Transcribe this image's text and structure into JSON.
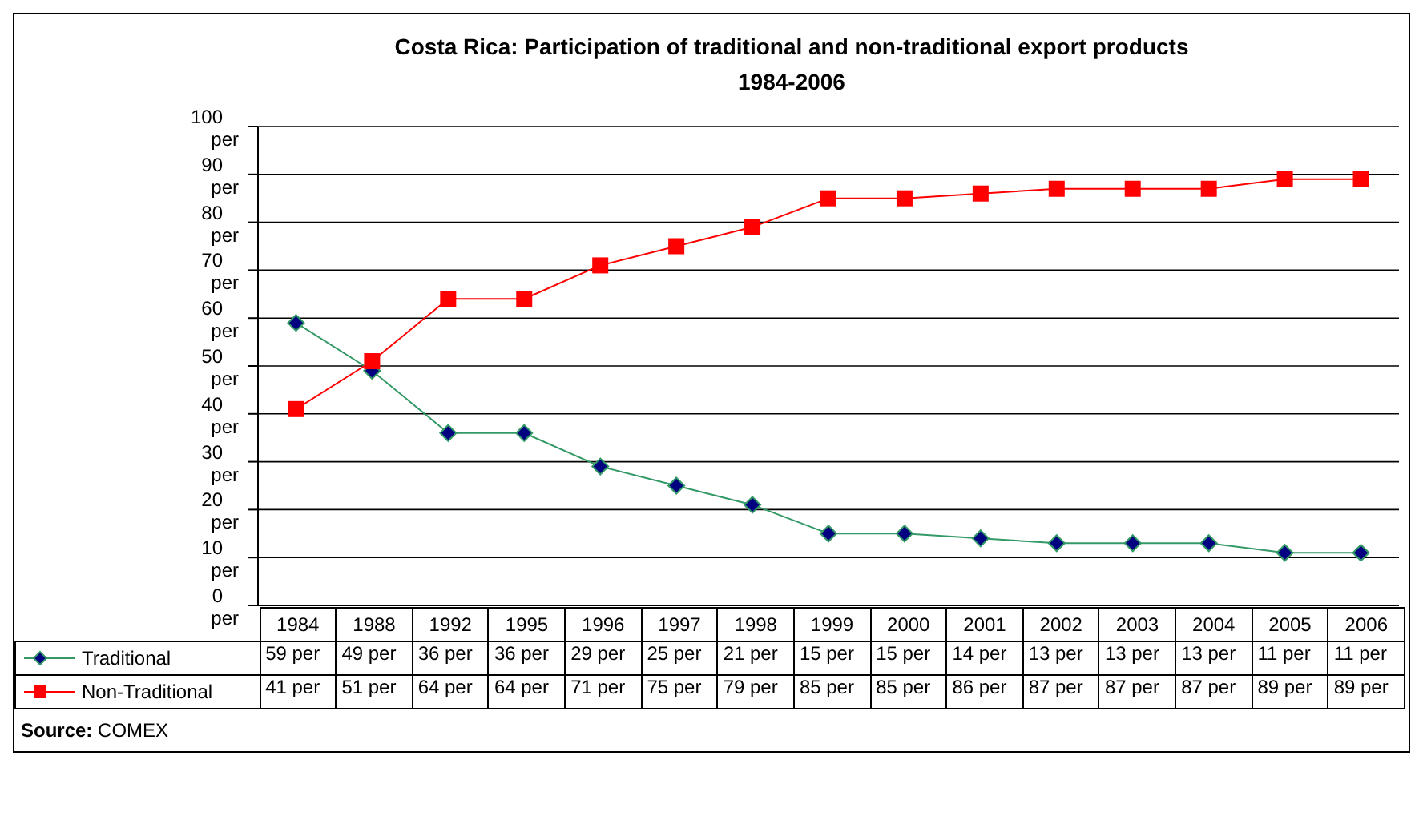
{
  "chart_data": {
    "type": "line",
    "title": "Costa Rica: Participation of traditional and non-traditional  export  products",
    "subtitle": "1984-2006",
    "categories": [
      "1984",
      "1988",
      "1992",
      "1995",
      "1996",
      "1997",
      "1998",
      "1999",
      "2000",
      "2001",
      "2002",
      "2003",
      "2004",
      "2005",
      "2006"
    ],
    "series": [
      {
        "name": "Traditional",
        "color": "#339966",
        "marker": "diamond",
        "values": [
          59,
          49,
          36,
          36,
          29,
          25,
          21,
          15,
          15,
          14,
          13,
          13,
          13,
          11,
          11
        ],
        "value_labels": [
          "59 per",
          "49 per",
          "36 per",
          "36 per",
          "29 per",
          "25 per",
          "21 per",
          "15 per",
          "15 per",
          "14 per",
          "13 per",
          "13 per",
          "13 per",
          "11 per",
          "11 per"
        ]
      },
      {
        "name": "Non-Traditional",
        "color": "#ff0000",
        "marker": "square",
        "values": [
          41,
          51,
          64,
          64,
          71,
          75,
          79,
          85,
          85,
          86,
          87,
          87,
          87,
          89,
          89
        ],
        "value_labels": [
          "41 per",
          "51 per",
          "64 per",
          "64 per",
          "71 per",
          "75 per",
          "79 per",
          "85 per",
          "85 per",
          "86 per",
          "87 per",
          "87 per",
          "87 per",
          "89 per",
          "89 per"
        ]
      }
    ],
    "ylim": [
      0,
      100
    ],
    "yticks": [
      {
        "value": 0,
        "label": "0 per"
      },
      {
        "value": 10,
        "label": "10 per"
      },
      {
        "value": 20,
        "label": "20 per"
      },
      {
        "value": 30,
        "label": "30 per"
      },
      {
        "value": 40,
        "label": "40 per"
      },
      {
        "value": 50,
        "label": "50 per"
      },
      {
        "value": 60,
        "label": "60 per"
      },
      {
        "value": 70,
        "label": "70 per"
      },
      {
        "value": 80,
        "label": "80 per"
      },
      {
        "value": 90,
        "label": "90 per"
      },
      {
        "value": 100,
        "label": "100 per"
      }
    ],
    "grid": "y",
    "legend": "bottom",
    "line_style": "solid",
    "annotations": [
      "Source: COMEX"
    ]
  }
}
